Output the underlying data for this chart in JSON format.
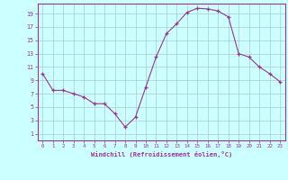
{
  "x": [
    0,
    1,
    2,
    3,
    4,
    5,
    6,
    7,
    8,
    9,
    10,
    11,
    12,
    13,
    14,
    15,
    16,
    17,
    18,
    19,
    20,
    21,
    22,
    23
  ],
  "y": [
    10,
    7.5,
    7.5,
    7,
    6.5,
    5.5,
    5.5,
    4,
    2,
    3.5,
    8,
    12.5,
    16,
    17.5,
    19.2,
    19.8,
    19.7,
    19.4,
    18.5,
    13,
    12.5,
    11,
    10,
    8.8
  ],
  "line_color": "#993399",
  "marker": "+",
  "marker_color": "#993399",
  "bg_color": "#ccffff",
  "grid_color": "#aacccc",
  "xlabel": "Windchill (Refroidissement éolien,°C)",
  "xlabel_color": "#993399",
  "tick_color": "#993399",
  "xlim": [
    -0.5,
    23.5
  ],
  "ylim": [
    0,
    20.5
  ],
  "yticks": [
    1,
    3,
    5,
    7,
    9,
    11,
    13,
    15,
    17,
    19
  ],
  "xticks": [
    0,
    1,
    2,
    3,
    4,
    5,
    6,
    7,
    8,
    9,
    10,
    11,
    12,
    13,
    14,
    15,
    16,
    17,
    18,
    19,
    20,
    21,
    22,
    23
  ],
  "spine_color": "#993399",
  "font_family": "monospace"
}
